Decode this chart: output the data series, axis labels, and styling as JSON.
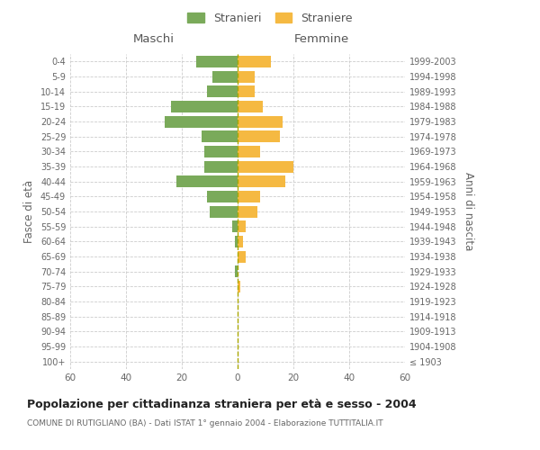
{
  "age_groups": [
    "100+",
    "95-99",
    "90-94",
    "85-89",
    "80-84",
    "75-79",
    "70-74",
    "65-69",
    "60-64",
    "55-59",
    "50-54",
    "45-49",
    "40-44",
    "35-39",
    "30-34",
    "25-29",
    "20-24",
    "15-19",
    "10-14",
    "5-9",
    "0-4"
  ],
  "birth_years": [
    "≤ 1903",
    "1904-1908",
    "1909-1913",
    "1914-1918",
    "1919-1923",
    "1924-1928",
    "1929-1933",
    "1934-1938",
    "1939-1943",
    "1944-1948",
    "1949-1953",
    "1954-1958",
    "1959-1963",
    "1964-1968",
    "1969-1973",
    "1974-1978",
    "1979-1983",
    "1984-1988",
    "1989-1993",
    "1994-1998",
    "1999-2003"
  ],
  "maschi": [
    0,
    0,
    0,
    0,
    0,
    0,
    1,
    0,
    1,
    2,
    10,
    11,
    22,
    12,
    12,
    13,
    26,
    24,
    11,
    9,
    15
  ],
  "femmine": [
    0,
    0,
    0,
    0,
    0,
    1,
    0,
    3,
    2,
    3,
    7,
    8,
    17,
    20,
    8,
    15,
    16,
    9,
    6,
    6,
    12
  ],
  "color_maschi": "#7aaa5a",
  "color_femmine": "#f5b942",
  "title": "Popolazione per cittadinanza straniera per età e sesso - 2004",
  "subtitle": "COMUNE DI RUTIGLIANO (BA) - Dati ISTAT 1° gennaio 2004 - Elaborazione TUTTITALIA.IT",
  "label_maschi": "Stranieri",
  "label_femmine": "Straniere",
  "left_header": "Maschi",
  "right_header": "Femmine",
  "left_axis_label": "Fasce di età",
  "right_axis_label": "Anni di nascita",
  "xlim": 60,
  "bg_color": "#ffffff",
  "grid_color": "#cccccc"
}
